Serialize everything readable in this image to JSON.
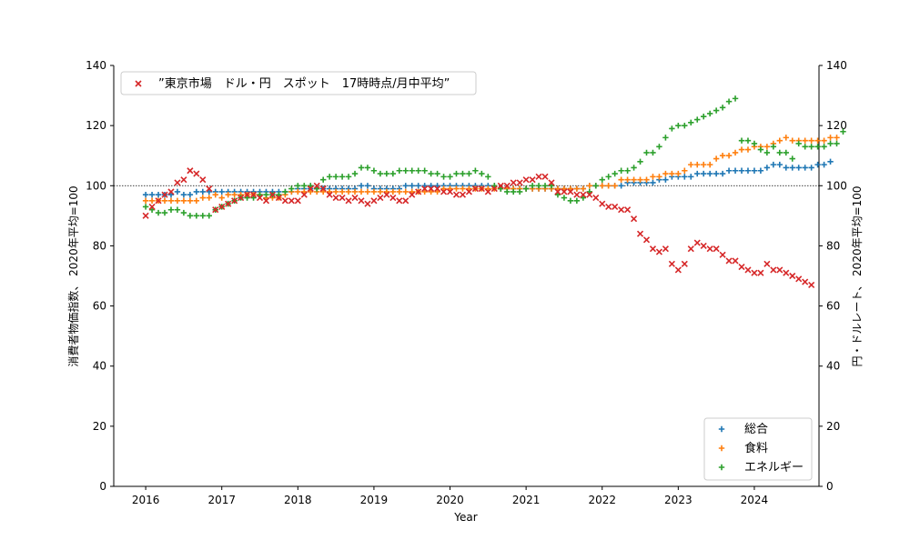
{
  "chart_data": {
    "type": "scatter",
    "xlabel": "Year",
    "ylabel_left": "消費者物価指数、 2020年平均=100",
    "ylabel_right": "円・ドルレート、 2020年平均=100",
    "ylim": [
      0,
      140
    ],
    "xlim": [
      2015.58,
      2024.85
    ],
    "x_ticks": [
      2016,
      2017,
      2018,
      2019,
      2020,
      2021,
      2022,
      2023,
      2024
    ],
    "y_ticks": [
      0,
      20,
      40,
      60,
      80,
      100,
      120,
      140
    ],
    "reference_line": 100,
    "grid": false,
    "left_series": [
      {
        "name": "総合",
        "color": "#1f77b4",
        "marker": "plus",
        "values": [
          97,
          97,
          97,
          97,
          97,
          98,
          97,
          97,
          98,
          98,
          98,
          98,
          98,
          98,
          98,
          98,
          98,
          98,
          98,
          98,
          98,
          98,
          98,
          98,
          99,
          99,
          99,
          99,
          99,
          99,
          99,
          99,
          99,
          99,
          100,
          100,
          99,
          99,
          99,
          99,
          99,
          100,
          100,
          100,
          100,
          100,
          100,
          100,
          100,
          100,
          100,
          100,
          100,
          100,
          100,
          100,
          99,
          99,
          99,
          99,
          99,
          99,
          99,
          99,
          99,
          99,
          99,
          99,
          99,
          99,
          100,
          100,
          100,
          100,
          100,
          100,
          101,
          101,
          101,
          101,
          101,
          102,
          102,
          103,
          103,
          103,
          103,
          104,
          104,
          104,
          104,
          104,
          105,
          105,
          105,
          105,
          105,
          105,
          106,
          107,
          107,
          106,
          106,
          106,
          106,
          106,
          107,
          107,
          108
        ]
      },
      {
        "name": "食料",
        "color": "#ff7f0e",
        "marker": "plus",
        "values": [
          95,
          95,
          95,
          95,
          95,
          95,
          95,
          95,
          95,
          96,
          96,
          97,
          96,
          97,
          97,
          97,
          97,
          97,
          97,
          96,
          96,
          96,
          97,
          98,
          98,
          98,
          98,
          98,
          98,
          98,
          98,
          98,
          98,
          98,
          98,
          98,
          98,
          98,
          98,
          98,
          98,
          98,
          98,
          98,
          98,
          98,
          98,
          99,
          99,
          99,
          99,
          99,
          99,
          99,
          99,
          99,
          99,
          99,
          99,
          99,
          99,
          99,
          99,
          99,
          99,
          99,
          99,
          99,
          99,
          99,
          100,
          100,
          100,
          100,
          100,
          102,
          102,
          102,
          102,
          102,
          103,
          103,
          104,
          104,
          104,
          105,
          107,
          107,
          107,
          107,
          109,
          110,
          110,
          111,
          112,
          112,
          113,
          113,
          113,
          114,
          115,
          116,
          115,
          115,
          115,
          115,
          115,
          115,
          116,
          116
        ]
      },
      {
        "name": "エネルギー",
        "color": "#2ca02c",
        "marker": "plus",
        "values": [
          93,
          92,
          91,
          91,
          92,
          92,
          91,
          90,
          90,
          90,
          90,
          92,
          93,
          94,
          95,
          96,
          96,
          96,
          97,
          97,
          97,
          97,
          98,
          99,
          100,
          100,
          100,
          99,
          102,
          103,
          103,
          103,
          103,
          104,
          106,
          106,
          105,
          104,
          104,
          104,
          105,
          105,
          105,
          105,
          105,
          104,
          104,
          103,
          103,
          104,
          104,
          104,
          105,
          104,
          103,
          100,
          99,
          98,
          98,
          98,
          99,
          100,
          100,
          100,
          100,
          97,
          96,
          95,
          95,
          96,
          98,
          100,
          102,
          103,
          104,
          105,
          105,
          106,
          108,
          111,
          111,
          113,
          116,
          119,
          120,
          120,
          121,
          122,
          123,
          124,
          125,
          126,
          128,
          129,
          115,
          115,
          114,
          112,
          111,
          113,
          111,
          111,
          109,
          114,
          113,
          113,
          113,
          113,
          114,
          114,
          118
        ]
      }
    ],
    "right_series": [
      {
        "name": "”東京市場　ドル・円　スポット　17時時点/月中平均”",
        "color": "#d62728",
        "marker": "x",
        "values": [
          90,
          93,
          95,
          97,
          98,
          101,
          102,
          105,
          104,
          102,
          99,
          92,
          93,
          94,
          95,
          96,
          97,
          97,
          96,
          95,
          97,
          96,
          95,
          95,
          95,
          97,
          99,
          100,
          99,
          97,
          96,
          96,
          95,
          96,
          95,
          94,
          95,
          96,
          97,
          96,
          95,
          95,
          97,
          98,
          99,
          99,
          99,
          98,
          98,
          97,
          97,
          98,
          99,
          99,
          98,
          99,
          100,
          100,
          101,
          101,
          102,
          102,
          103,
          103,
          101,
          98,
          98,
          98,
          97,
          97,
          97,
          96,
          94,
          93,
          93,
          92,
          92,
          89,
          84,
          82,
          79,
          78,
          79,
          74,
          72,
          74,
          79,
          81,
          80,
          79,
          79,
          77,
          75,
          75,
          73,
          72,
          71,
          71,
          74,
          72,
          72,
          71,
          70,
          69,
          68,
          67
        ]
      }
    ],
    "legend_upper": {
      "position": "top-left"
    },
    "legend_lower": {
      "position": "bottom-right"
    }
  }
}
